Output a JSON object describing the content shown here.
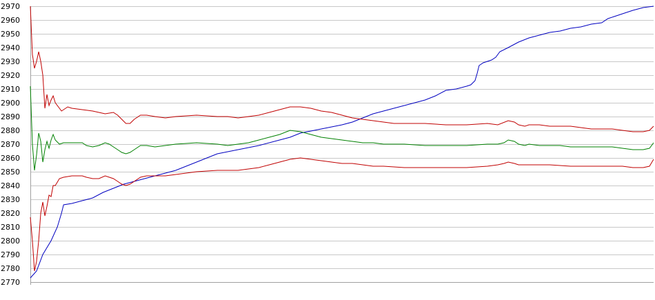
{
  "chart_data": {
    "type": "line",
    "title": "",
    "xlabel": "",
    "ylabel": "",
    "ylim": [
      2770,
      2970
    ],
    "yticks": [
      2770,
      2780,
      2790,
      2800,
      2810,
      2820,
      2830,
      2840,
      2850,
      2860,
      2870,
      2880,
      2890,
      2900,
      2910,
      2920,
      2930,
      2940,
      2950,
      2960,
      2970
    ],
    "grid": true,
    "legend": "none",
    "x_count": 301,
    "colors": {
      "blue": "#0000c0",
      "red": "#c00000",
      "green": "#008000",
      "grid": "#c8c8c8"
    },
    "series": [
      {
        "color": "#0000c0",
        "keypoints": [
          [
            0,
            2773
          ],
          [
            3,
            2778
          ],
          [
            6,
            2790
          ],
          [
            10,
            2800
          ],
          [
            13,
            2810
          ],
          [
            15,
            2820
          ],
          [
            16,
            2826
          ],
          [
            20,
            2827
          ],
          [
            25,
            2829
          ],
          [
            30,
            2831
          ],
          [
            35,
            2835
          ],
          [
            40,
            2838
          ],
          [
            45,
            2841
          ],
          [
            50,
            2843
          ],
          [
            55,
            2845
          ],
          [
            60,
            2847
          ],
          [
            65,
            2849
          ],
          [
            70,
            2851
          ],
          [
            75,
            2854
          ],
          [
            80,
            2857
          ],
          [
            85,
            2860
          ],
          [
            90,
            2863
          ],
          [
            100,
            2866
          ],
          [
            110,
            2869
          ],
          [
            120,
            2873
          ],
          [
            125,
            2875
          ],
          [
            130,
            2878
          ],
          [
            140,
            2881
          ],
          [
            150,
            2884
          ],
          [
            155,
            2886
          ],
          [
            160,
            2889
          ],
          [
            165,
            2892
          ],
          [
            175,
            2896
          ],
          [
            185,
            2900
          ],
          [
            190,
            2902
          ],
          [
            195,
            2905
          ],
          [
            200,
            2909
          ],
          [
            205,
            2910
          ],
          [
            210,
            2912
          ],
          [
            212,
            2913
          ],
          [
            214,
            2916
          ],
          [
            215,
            2921
          ],
          [
            216,
            2927
          ],
          [
            218,
            2929
          ],
          [
            222,
            2931
          ],
          [
            224,
            2933
          ],
          [
            226,
            2937
          ],
          [
            230,
            2940
          ],
          [
            235,
            2944
          ],
          [
            240,
            2947
          ],
          [
            245,
            2949
          ],
          [
            250,
            2951
          ],
          [
            255,
            2952
          ],
          [
            260,
            2954
          ],
          [
            265,
            2955
          ],
          [
            270,
            2957
          ],
          [
            275,
            2958
          ],
          [
            278,
            2961
          ],
          [
            282,
            2963
          ],
          [
            286,
            2965
          ],
          [
            290,
            2967
          ],
          [
            295,
            2969
          ],
          [
            300,
            2970
          ]
        ]
      },
      {
        "color": "#c00000",
        "keypoints": [
          [
            0,
            2970
          ],
          [
            1,
            2935
          ],
          [
            2,
            2925
          ],
          [
            3,
            2930
          ],
          [
            4,
            2937
          ],
          [
            5,
            2930
          ],
          [
            6,
            2920
          ],
          [
            7,
            2896
          ],
          [
            8,
            2906
          ],
          [
            9,
            2898
          ],
          [
            10,
            2902
          ],
          [
            11,
            2905
          ],
          [
            12,
            2900
          ],
          [
            15,
            2894
          ],
          [
            18,
            2897
          ],
          [
            20,
            2896
          ],
          [
            25,
            2895
          ],
          [
            30,
            2894
          ],
          [
            33,
            2893
          ],
          [
            36,
            2892
          ],
          [
            40,
            2893
          ],
          [
            42,
            2891
          ],
          [
            44,
            2888
          ],
          [
            46,
            2885
          ],
          [
            48,
            2885
          ],
          [
            50,
            2888
          ],
          [
            53,
            2891
          ],
          [
            56,
            2891
          ],
          [
            60,
            2890
          ],
          [
            65,
            2889
          ],
          [
            70,
            2890
          ],
          [
            80,
            2891
          ],
          [
            90,
            2890
          ],
          [
            95,
            2890
          ],
          [
            100,
            2889
          ],
          [
            105,
            2890
          ],
          [
            110,
            2891
          ],
          [
            115,
            2893
          ],
          [
            120,
            2895
          ],
          [
            125,
            2897
          ],
          [
            130,
            2897
          ],
          [
            135,
            2896
          ],
          [
            140,
            2894
          ],
          [
            145,
            2893
          ],
          [
            150,
            2891
          ],
          [
            155,
            2889
          ],
          [
            160,
            2888
          ],
          [
            165,
            2887
          ],
          [
            170,
            2886
          ],
          [
            175,
            2885
          ],
          [
            180,
            2885
          ],
          [
            190,
            2885
          ],
          [
            200,
            2884
          ],
          [
            210,
            2884
          ],
          [
            220,
            2885
          ],
          [
            225,
            2884
          ],
          [
            230,
            2887
          ],
          [
            233,
            2886
          ],
          [
            235,
            2884
          ],
          [
            238,
            2883
          ],
          [
            240,
            2884
          ],
          [
            245,
            2884
          ],
          [
            250,
            2883
          ],
          [
            260,
            2883
          ],
          [
            265,
            2882
          ],
          [
            270,
            2881
          ],
          [
            280,
            2881
          ],
          [
            285,
            2880
          ],
          [
            290,
            2879
          ],
          [
            295,
            2879
          ],
          [
            298,
            2880
          ],
          [
            300,
            2883
          ]
        ]
      },
      {
        "color": "#008000",
        "keypoints": [
          [
            0,
            2912
          ],
          [
            1,
            2870
          ],
          [
            2,
            2851
          ],
          [
            3,
            2862
          ],
          [
            4,
            2878
          ],
          [
            5,
            2872
          ],
          [
            6,
            2857
          ],
          [
            7,
            2866
          ],
          [
            8,
            2872
          ],
          [
            9,
            2867
          ],
          [
            10,
            2873
          ],
          [
            11,
            2877
          ],
          [
            12,
            2873
          ],
          [
            14,
            2870
          ],
          [
            16,
            2871
          ],
          [
            20,
            2871
          ],
          [
            25,
            2871
          ],
          [
            27,
            2869
          ],
          [
            30,
            2868
          ],
          [
            33,
            2869
          ],
          [
            36,
            2871
          ],
          [
            38,
            2870
          ],
          [
            40,
            2868
          ],
          [
            42,
            2866
          ],
          [
            44,
            2864
          ],
          [
            46,
            2863
          ],
          [
            48,
            2864
          ],
          [
            50,
            2866
          ],
          [
            53,
            2869
          ],
          [
            56,
            2869
          ],
          [
            60,
            2868
          ],
          [
            65,
            2869
          ],
          [
            70,
            2870
          ],
          [
            80,
            2871
          ],
          [
            90,
            2870
          ],
          [
            95,
            2869
          ],
          [
            100,
            2870
          ],
          [
            105,
            2871
          ],
          [
            110,
            2873
          ],
          [
            115,
            2875
          ],
          [
            120,
            2877
          ],
          [
            125,
            2880
          ],
          [
            130,
            2879
          ],
          [
            135,
            2877
          ],
          [
            140,
            2875
          ],
          [
            145,
            2874
          ],
          [
            150,
            2873
          ],
          [
            155,
            2872
          ],
          [
            160,
            2871
          ],
          [
            165,
            2871
          ],
          [
            170,
            2870
          ],
          [
            180,
            2870
          ],
          [
            190,
            2869
          ],
          [
            200,
            2869
          ],
          [
            210,
            2869
          ],
          [
            220,
            2870
          ],
          [
            225,
            2870
          ],
          [
            228,
            2871
          ],
          [
            230,
            2873
          ],
          [
            233,
            2872
          ],
          [
            235,
            2870
          ],
          [
            238,
            2869
          ],
          [
            240,
            2870
          ],
          [
            245,
            2869
          ],
          [
            250,
            2869
          ],
          [
            255,
            2869
          ],
          [
            260,
            2868
          ],
          [
            270,
            2868
          ],
          [
            280,
            2868
          ],
          [
            285,
            2867
          ],
          [
            290,
            2866
          ],
          [
            295,
            2866
          ],
          [
            298,
            2867
          ],
          [
            300,
            2871
          ]
        ]
      },
      {
        "color": "#c00000",
        "keypoints": [
          [
            0,
            2817
          ],
          [
            1,
            2800
          ],
          [
            2,
            2778
          ],
          [
            3,
            2785
          ],
          [
            4,
            2800
          ],
          [
            5,
            2820
          ],
          [
            6,
            2828
          ],
          [
            7,
            2818
          ],
          [
            8,
            2825
          ],
          [
            9,
            2833
          ],
          [
            10,
            2832
          ],
          [
            11,
            2840
          ],
          [
            12,
            2840
          ],
          [
            14,
            2845
          ],
          [
            16,
            2846
          ],
          [
            20,
            2847
          ],
          [
            25,
            2847
          ],
          [
            27,
            2846
          ],
          [
            30,
            2845
          ],
          [
            33,
            2845
          ],
          [
            36,
            2847
          ],
          [
            38,
            2846
          ],
          [
            40,
            2845
          ],
          [
            42,
            2843
          ],
          [
            44,
            2841
          ],
          [
            46,
            2840
          ],
          [
            48,
            2841
          ],
          [
            50,
            2843
          ],
          [
            53,
            2846
          ],
          [
            56,
            2847
          ],
          [
            60,
            2847
          ],
          [
            65,
            2847
          ],
          [
            70,
            2848
          ],
          [
            75,
            2849
          ],
          [
            80,
            2850
          ],
          [
            90,
            2851
          ],
          [
            95,
            2851
          ],
          [
            100,
            2851
          ],
          [
            105,
            2852
          ],
          [
            110,
            2853
          ],
          [
            115,
            2855
          ],
          [
            120,
            2857
          ],
          [
            125,
            2859
          ],
          [
            130,
            2860
          ],
          [
            135,
            2859
          ],
          [
            140,
            2858
          ],
          [
            145,
            2857
          ],
          [
            150,
            2856
          ],
          [
            155,
            2856
          ],
          [
            160,
            2855
          ],
          [
            165,
            2854
          ],
          [
            170,
            2854
          ],
          [
            180,
            2853
          ],
          [
            190,
            2853
          ],
          [
            200,
            2853
          ],
          [
            210,
            2853
          ],
          [
            220,
            2854
          ],
          [
            225,
            2855
          ],
          [
            228,
            2856
          ],
          [
            230,
            2857
          ],
          [
            233,
            2856
          ],
          [
            235,
            2855
          ],
          [
            240,
            2855
          ],
          [
            245,
            2855
          ],
          [
            250,
            2855
          ],
          [
            260,
            2854
          ],
          [
            270,
            2854
          ],
          [
            280,
            2854
          ],
          [
            285,
            2854
          ],
          [
            290,
            2853
          ],
          [
            295,
            2853
          ],
          [
            298,
            2854
          ],
          [
            300,
            2859
          ]
        ]
      }
    ]
  }
}
